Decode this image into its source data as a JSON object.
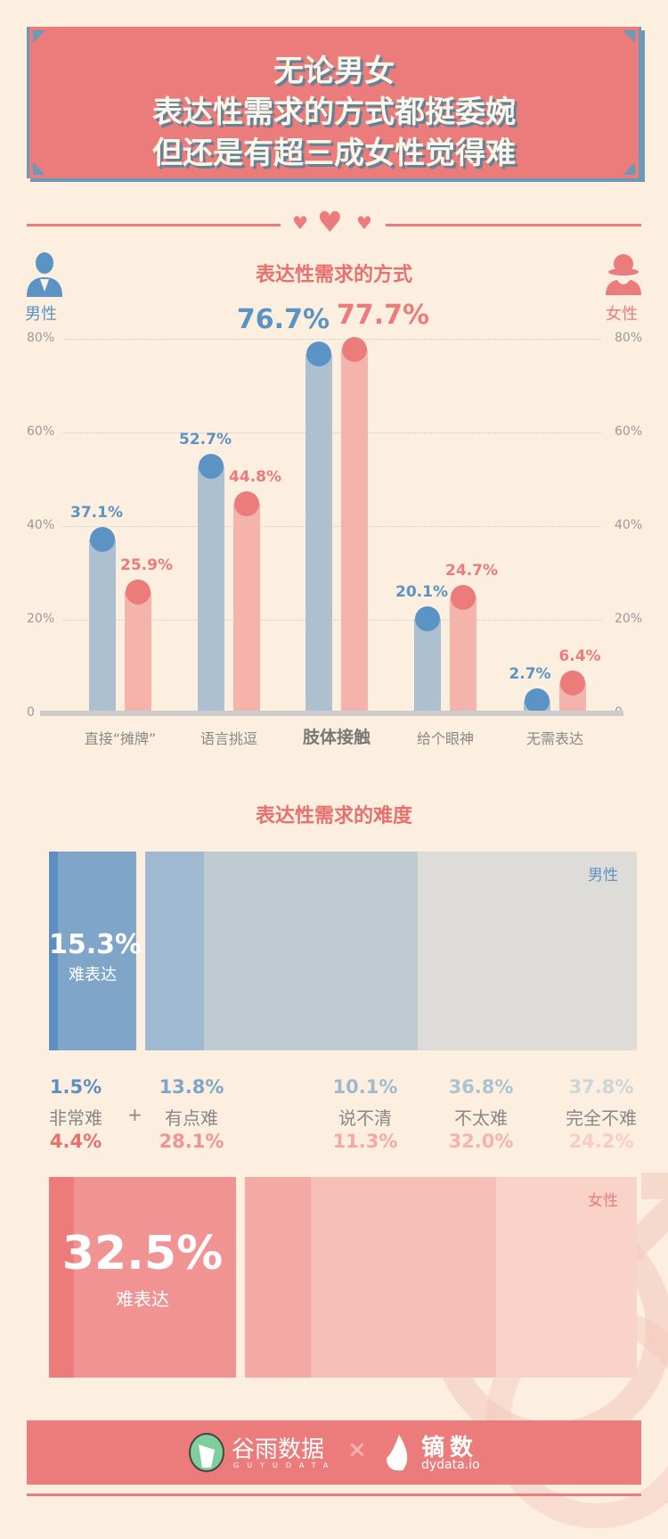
{
  "title": {
    "lines": [
      "无论男女",
      "表达性需求的方式都挺委婉",
      "但还是有超三成女性觉得难"
    ]
  },
  "colors": {
    "male": "#5b93c4",
    "male_bar": "#adc0d0",
    "female": "#ec7b7c",
    "female_bar": "#f5b4ab",
    "background": "#fdefe0"
  },
  "legend": {
    "male": "男性",
    "female": "女性",
    "male_icon": "man-icon",
    "female_icon": "woman-icon"
  },
  "chart_data": [
    {
      "type": "bar",
      "title": "表达性需求的方式",
      "categories": [
        "直接“摊牌”",
        "语言挑逗",
        "肢体接触",
        "给个眼神",
        "无需表达"
      ],
      "series": [
        {
          "name": "男性",
          "values": [
            37.1,
            52.7,
            76.7,
            20.1,
            2.7
          ],
          "labels": [
            "37.1%",
            "52.7%",
            "76.7%",
            "20.1%",
            "2.7%"
          ]
        },
        {
          "name": "女性",
          "values": [
            25.9,
            44.8,
            77.7,
            24.7,
            6.4
          ],
          "labels": [
            "25.9%",
            "44.8%",
            "77.7%",
            "24.7%",
            "6.4%"
          ]
        }
      ],
      "yticks": [
        "0",
        "20%",
        "40%",
        "60%",
        "80%"
      ],
      "ylim": [
        0,
        80
      ],
      "grid": true
    },
    {
      "type": "bar",
      "subtype": "stacked-100",
      "title": "表达性需求的难度",
      "categories": [
        "非常难",
        "有点难",
        "说不清",
        "不太难",
        "完全不难"
      ],
      "series": [
        {
          "name": "男性",
          "values": [
            1.5,
            13.8,
            10.1,
            36.8,
            37.8
          ],
          "labels": [
            "1.5%",
            "13.8%",
            "10.1%",
            "36.8%",
            "37.8%"
          ],
          "summary": "15.3%",
          "summary_label": "难表达"
        },
        {
          "name": "女性",
          "values": [
            4.4,
            28.1,
            11.3,
            32.0,
            24.2
          ],
          "labels": [
            "4.4%",
            "28.1%",
            "11.3%",
            "32.0%",
            "24.2%"
          ],
          "summary": "32.5%",
          "summary_label": "难表达"
        }
      ],
      "plus": "+"
    }
  ],
  "footer": {
    "brand1": "谷雨数据",
    "brand1_sub": "GUYUDATA",
    "times": "×",
    "brand2": "镝数",
    "brand2_sub": "dydata.io"
  }
}
